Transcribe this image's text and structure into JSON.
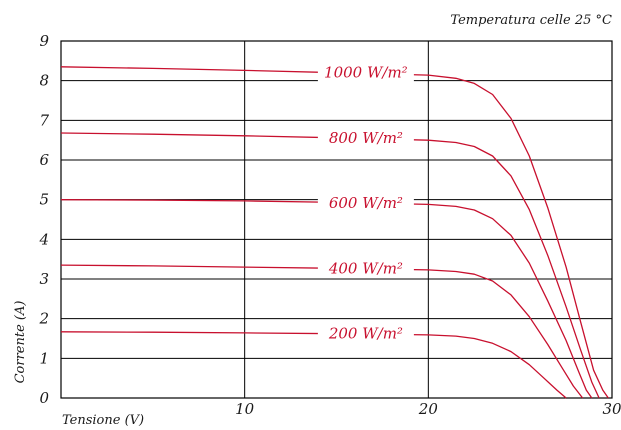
{
  "annotation": "Temperatura celle 25 °C",
  "chart_data": {
    "type": "line",
    "xlabel": "Tensione (V)",
    "ylabel": "Corrente (A)",
    "xlim": [
      0,
      30
    ],
    "ylim": [
      0,
      9
    ],
    "xticks": [
      "10",
      "20",
      "30"
    ],
    "yticks": [
      "0",
      "1",
      "2",
      "3",
      "4",
      "5",
      "6",
      "7",
      "8",
      "9"
    ],
    "grid": true,
    "series_color": "#c8102e",
    "series": [
      {
        "name": "1000 W/m²",
        "x": [
          0,
          5,
          10,
          15,
          20,
          21.5,
          22.5,
          23.5,
          24.5,
          25.5,
          26.5,
          27.5,
          28.3,
          29,
          29.5,
          29.8
        ],
        "y": [
          8.35,
          8.31,
          8.26,
          8.2,
          8.14,
          8.06,
          7.93,
          7.65,
          7.05,
          6.1,
          4.8,
          3.3,
          1.9,
          0.7,
          0.2,
          0
        ]
      },
      {
        "name": "800 W/m²",
        "x": [
          0,
          5,
          10,
          15,
          20,
          21.5,
          22.5,
          23.5,
          24.5,
          25.5,
          26.5,
          27.5,
          28.3,
          28.9,
          29.3
        ],
        "y": [
          6.68,
          6.65,
          6.61,
          6.56,
          6.5,
          6.44,
          6.34,
          6.1,
          5.6,
          4.75,
          3.6,
          2.3,
          1.2,
          0.4,
          0
        ]
      },
      {
        "name": "600 W/m²",
        "x": [
          0,
          5,
          10,
          15,
          20,
          21.5,
          22.5,
          23.5,
          24.5,
          25.5,
          26.5,
          27.5,
          28.2,
          28.6,
          28.9
        ],
        "y": [
          5.0,
          4.99,
          4.97,
          4.93,
          4.88,
          4.83,
          4.74,
          4.52,
          4.1,
          3.4,
          2.45,
          1.45,
          0.65,
          0.2,
          0
        ]
      },
      {
        "name": "400 W/m²",
        "x": [
          0,
          5,
          10,
          15,
          20,
          21.5,
          22.5,
          23.5,
          24.5,
          25.5,
          26.5,
          27.3,
          27.9,
          28.4
        ],
        "y": [
          3.35,
          3.33,
          3.3,
          3.27,
          3.23,
          3.19,
          3.12,
          2.95,
          2.6,
          2.05,
          1.35,
          0.75,
          0.3,
          0
        ]
      },
      {
        "name": "200 W/m²",
        "x": [
          0,
          5,
          10,
          15,
          20,
          21.5,
          22.5,
          23.5,
          24.5,
          25.5,
          26.3,
          27,
          27.5
        ],
        "y": [
          1.67,
          1.66,
          1.64,
          1.62,
          1.59,
          1.56,
          1.5,
          1.38,
          1.17,
          0.84,
          0.5,
          0.2,
          0
        ]
      }
    ],
    "curve_labels": [
      {
        "text": "1000 W/m²",
        "x": 16.6,
        "y": 8.2
      },
      {
        "text": "800 W/m²",
        "x": 16.6,
        "y": 6.55
      },
      {
        "text": "600 W/m²",
        "x": 16.6,
        "y": 4.92
      },
      {
        "text": "400 W/m²",
        "x": 16.6,
        "y": 3.26
      },
      {
        "text": "200 W/m²",
        "x": 16.6,
        "y": 1.62
      }
    ]
  }
}
